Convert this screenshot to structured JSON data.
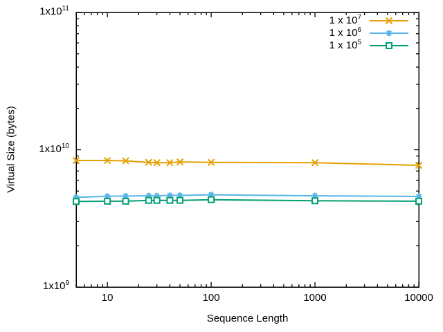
{
  "colors": {
    "background": "#ffffff",
    "axis": "#000000",
    "series_orange": "#E69F00",
    "series_blue": "#56B4E9",
    "series_green": "#009E73"
  },
  "chart_data": {
    "type": "line",
    "title": "",
    "xlabel": "Sequence Length",
    "ylabel": "Virtual Size (bytes)",
    "x_scale": "log",
    "y_scale": "log",
    "xlim": [
      5,
      10000
    ],
    "ylim": [
      1000000000.0,
      100000000000.0
    ],
    "grid": false,
    "legend_position": "top-right-inside",
    "x_tick_labels": [
      {
        "value": 10,
        "label": "10"
      },
      {
        "value": 100,
        "label": "100"
      },
      {
        "value": 1000,
        "label": "1000"
      },
      {
        "value": 10000,
        "label": "10000"
      }
    ],
    "y_tick_labels": [
      {
        "value": 1000000000.0,
        "base": "1x10",
        "exp": "9"
      },
      {
        "value": 10000000000.0,
        "base": "1x10",
        "exp": "10"
      },
      {
        "value": 100000000000.0,
        "base": "1x10",
        "exp": "11"
      }
    ],
    "x": [
      5,
      10,
      15,
      25,
      30,
      40,
      50,
      100,
      1000,
      10000
    ],
    "series": [
      {
        "name": "1 x 10^7",
        "label_base": "1 x 10",
        "label_exp": "7",
        "color": "#E69F00",
        "marker": "cross",
        "values": [
          8350000000.0,
          8350000000.0,
          8300000000.0,
          8100000000.0,
          8050000000.0,
          8050000000.0,
          8150000000.0,
          8100000000.0,
          8050000000.0,
          7700000000.0
        ]
      },
      {
        "name": "1 x 10^6",
        "label_base": "1 x 10",
        "label_exp": "6",
        "color": "#56B4E9",
        "marker": "asterisk",
        "values": [
          4500000000.0,
          4580000000.0,
          4600000000.0,
          4620000000.0,
          4620000000.0,
          4650000000.0,
          4650000000.0,
          4700000000.0,
          4620000000.0,
          4570000000.0
        ]
      },
      {
        "name": "1 x 10^5",
        "label_base": "1 x 10",
        "label_exp": "5",
        "color": "#009E73",
        "marker": "open-square",
        "values": [
          4200000000.0,
          4220000000.0,
          4220000000.0,
          4280000000.0,
          4280000000.0,
          4280000000.0,
          4280000000.0,
          4330000000.0,
          4250000000.0,
          4220000000.0
        ]
      }
    ]
  }
}
